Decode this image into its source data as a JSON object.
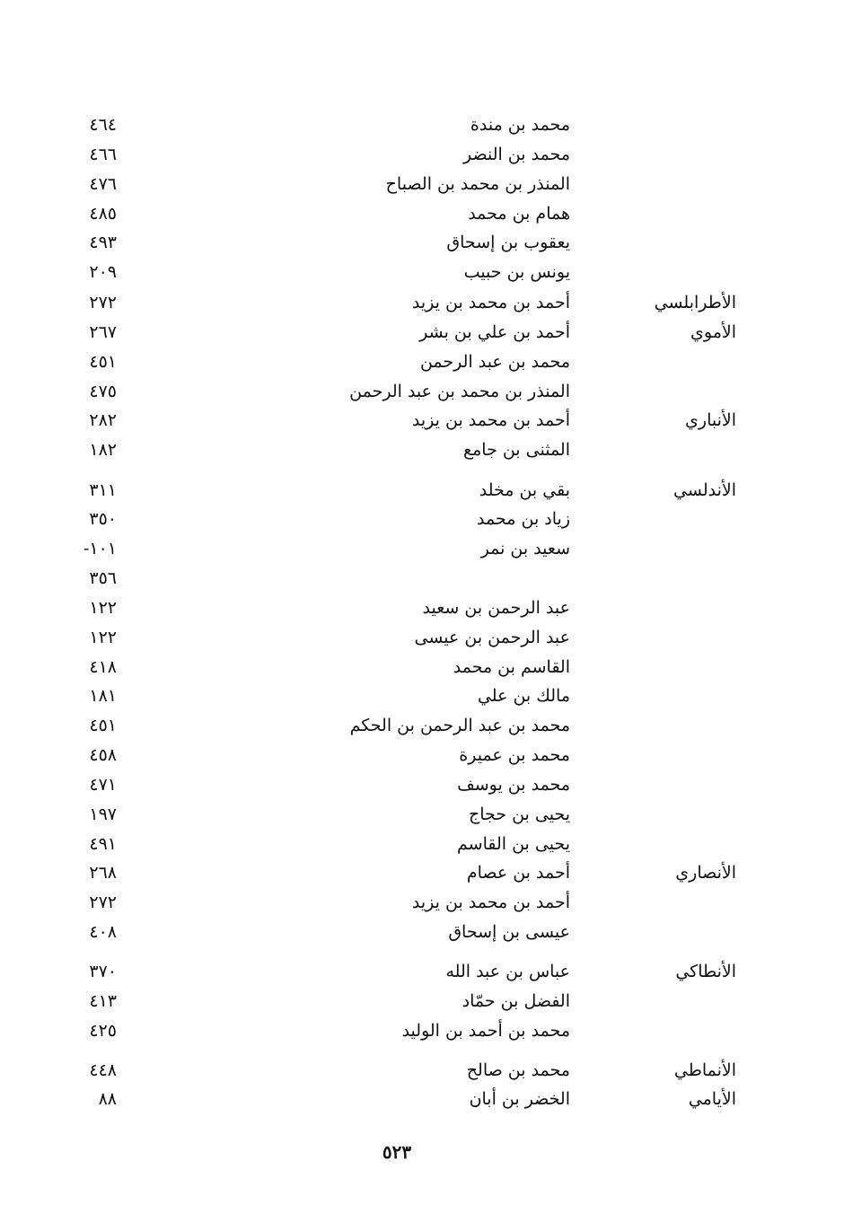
{
  "entries": [
    {
      "name": "محمد بن مندة",
      "page": "٤٦٤"
    },
    {
      "name": "محمد بن النضر",
      "page": "٤٦٦"
    },
    {
      "name": "المنذر بن محمد بن الصباح",
      "page": "٤٧٦"
    },
    {
      "name": "همام بن محمد",
      "page": "٤٨٥"
    },
    {
      "name": "يعقوب بن إسحاق",
      "page": "٤٩٣"
    },
    {
      "name": "يونس بن حبيب",
      "page": "٢٠٩"
    },
    {
      "nisba": "الأطرابلسي",
      "name": "أحمد بن محمد بن يزيد",
      "page": "٢٧٢"
    },
    {
      "nisba": "الأموي",
      "name": "أحمد بن علي بن بشر",
      "page": "٢٦٧"
    },
    {
      "name": "محمد بن عبد الرحمن",
      "page": "٤٥١"
    },
    {
      "name": "المنذر بن محمد بن عبد الرحمن",
      "page": "٤٧٥"
    },
    {
      "nisba": "الأنباري",
      "name": "أحمد بن محمد بن يزيد",
      "page": "٢٨٢"
    },
    {
      "name": "المثنى بن جامع",
      "page": "١٨٢"
    },
    {
      "nisba": "الأندلسي",
      "name": "بقي بن مخلد",
      "page": "٣١١"
    },
    {
      "name": "زياد بن محمد",
      "page": "٣٥٠"
    },
    {
      "name": "سعيد بن نمر",
      "page": "-١٠١"
    },
    {
      "page": "٣٥٦"
    },
    {
      "name": "عبد الرحمن بن سعيد",
      "page": "١٢٢"
    },
    {
      "name": "عبد الرحمن بن عيسى",
      "page": "١٢٢"
    },
    {
      "name": "القاسم بن محمد",
      "page": "٤١٨"
    },
    {
      "name": "مالك بن علي",
      "page": "١٨١"
    },
    {
      "name": "محمد بن عبد الرحمن بن الحكم",
      "page": "٤٥١"
    },
    {
      "name": "محمد بن عميرة",
      "page": "٤٥٨"
    },
    {
      "name": "محمد بن يوسف",
      "page": "٤٧١"
    },
    {
      "name": "يحيى بن حجاج",
      "page": "١٩٧"
    },
    {
      "name": "يحيى بن القاسم",
      "page": "٤٩١"
    },
    {
      "nisba": "الأنصاري",
      "name": "أحمد بن عصام",
      "page": "٢٦٨"
    },
    {
      "name": "أحمد بن محمد بن يزيد",
      "page": "٢٧٢"
    },
    {
      "name": "عيسى بن إسحاق",
      "page": "٤٠٨"
    },
    {
      "nisba": "الأنطاكي",
      "name": "عباس بن عبد الله",
      "page": "٣٧٠"
    },
    {
      "name": "الفضل بن حمّاد",
      "page": "٤١٣"
    },
    {
      "name": "محمد بن أحمد بن الوليد",
      "page": "٤٢٥"
    },
    {
      "nisba": "الأنماطي",
      "name": "محمد بن صالح",
      "page": "٤٤٨"
    },
    {
      "nisba": "الأيامي",
      "name": "الخضر بن أبان",
      "page": "٨٨"
    }
  ],
  "footer": {
    "page_number": "٥٢٣"
  }
}
